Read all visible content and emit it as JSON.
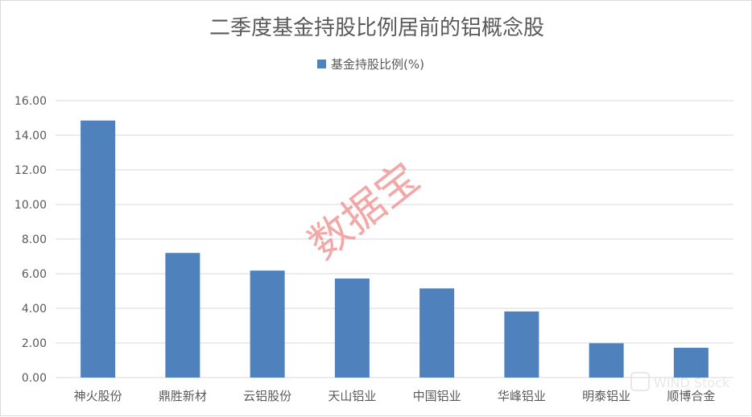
{
  "chart_data": {
    "type": "bar",
    "title": "二季度基金持股比例居前的铝概念股",
    "categories": [
      "神火股份",
      "鼎胜新材",
      "云铝股份",
      "天山铝业",
      "中国铝业",
      "华峰铝业",
      "明泰铝业",
      "顺博合金"
    ],
    "series": [
      {
        "name": "基金持股比例(%)",
        "values": [
          14.85,
          7.2,
          6.18,
          5.72,
          5.15,
          3.82,
          1.98,
          1.72
        ]
      }
    ],
    "ylim": [
      0,
      16
    ],
    "yticks": [
      "0.00",
      "2.00",
      "4.00",
      "6.00",
      "8.00",
      "10.00",
      "12.00",
      "14.00",
      "16.00"
    ],
    "grid": true,
    "legend_position": "top",
    "colors": {
      "bar": "#4f81bd",
      "grid": "#d9d9d9",
      "text": "#595959",
      "watermark": "#f08c8c"
    }
  },
  "watermark": "数据宝",
  "brand_mark": "WIND Stock"
}
